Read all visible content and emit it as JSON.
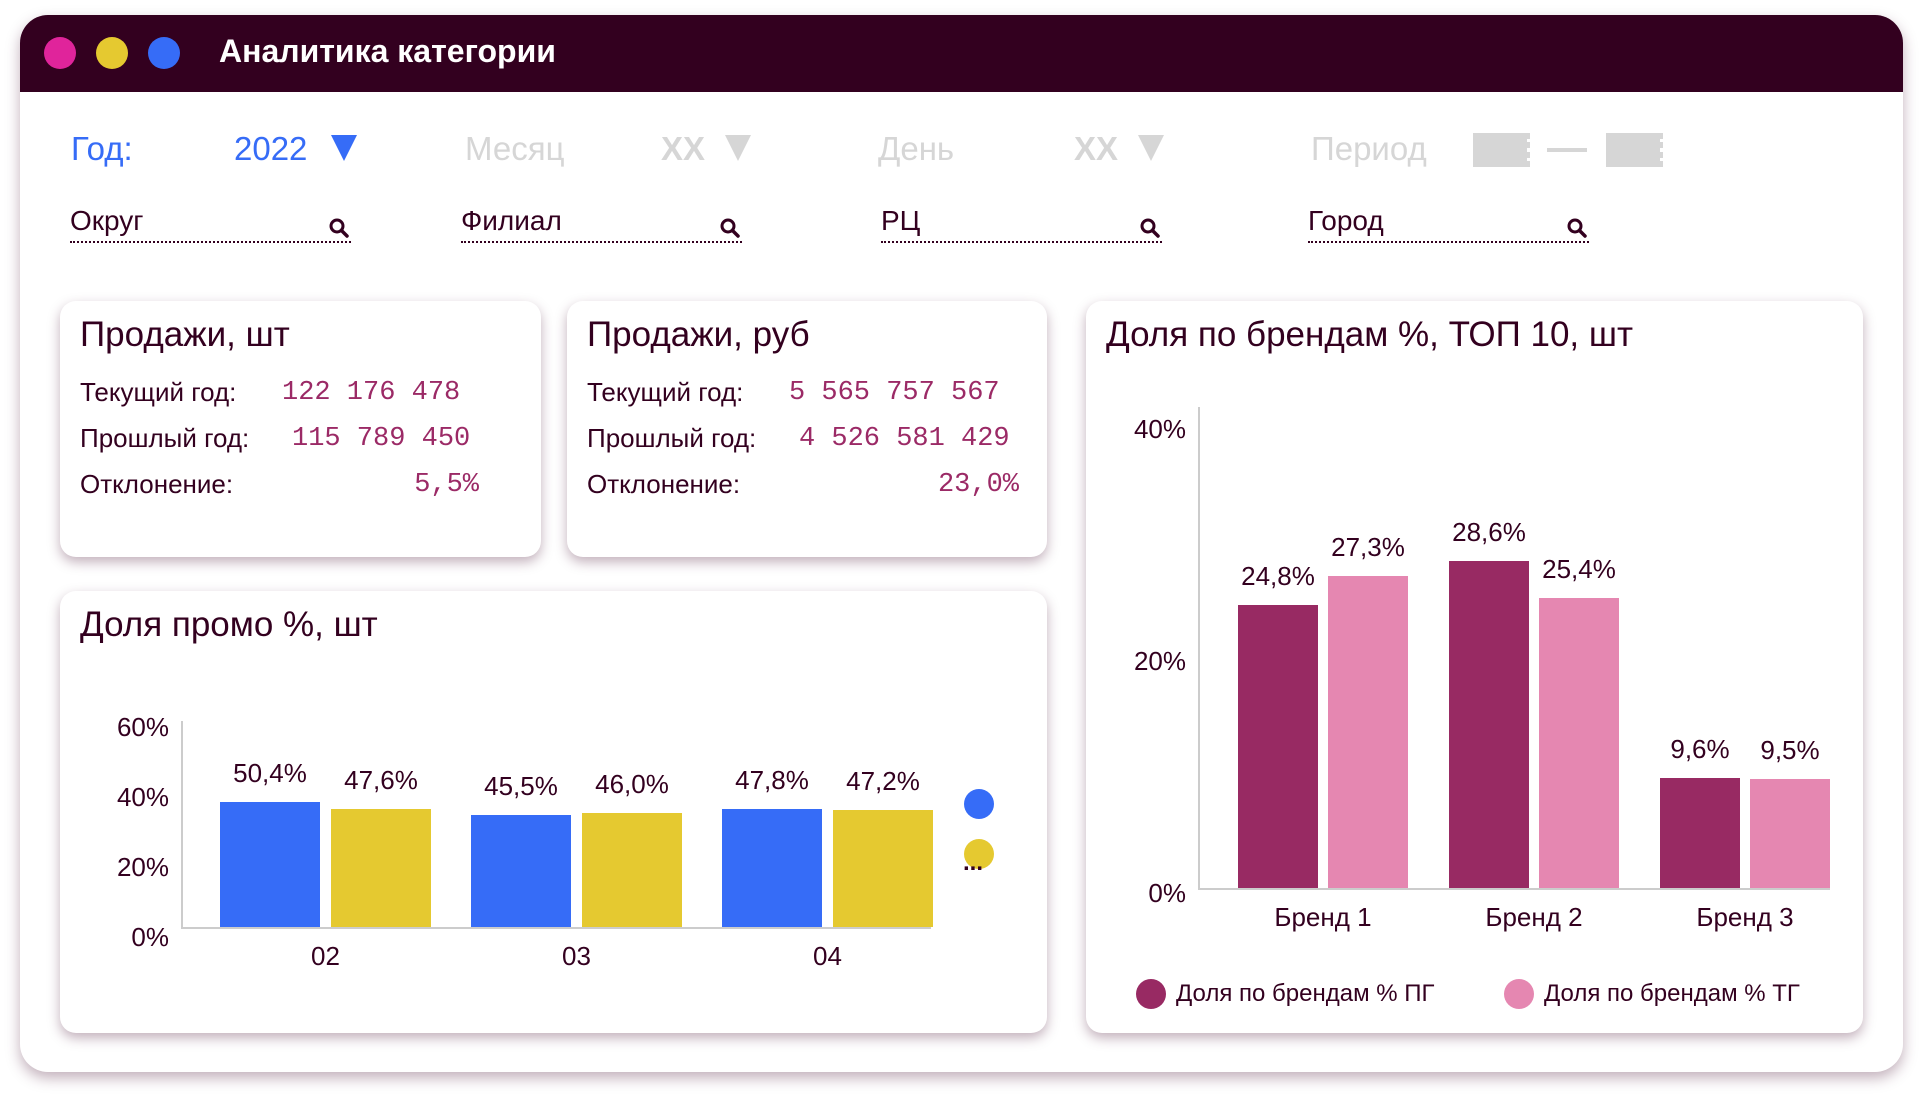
{
  "window": {
    "title": "Аналитика категории",
    "dots": [
      "#e0249b",
      "#e5c930",
      "#366cf7"
    ]
  },
  "filters": {
    "year_label": "Год:",
    "year_value": "2022",
    "month_label": "Месяц",
    "month_value": "XX",
    "day_label": "День",
    "day_value": "XX",
    "period_label": "Период",
    "period_sep": "—",
    "search": [
      {
        "placeholder": "Округ"
      },
      {
        "placeholder": "Филиал"
      },
      {
        "placeholder": "РЦ"
      },
      {
        "placeholder": "Город"
      }
    ]
  },
  "sales_units": {
    "title": "Продажи, шт",
    "current_label": "Текущий год:",
    "current_value": "122 176 478",
    "previous_label": "Прошлый год:",
    "previous_value": "115 789 450",
    "deviation_label": "Отклонение:",
    "deviation_value": "5,5%"
  },
  "sales_rub": {
    "title": "Продажи, руб",
    "current_label": "Текущий год:",
    "current_value": "5 565 757 567",
    "previous_label": "Прошлый год:",
    "previous_value": "4 526 581 429",
    "deviation_label": "Отклонение:",
    "deviation_value": "23,0%"
  },
  "colors": {
    "accent": "#366cf7",
    "dark": "#33001f",
    "blue": "#366cf7",
    "yellow": "#e5c930",
    "maroon": "#982a63",
    "pink": "#e587b1"
  },
  "chart_data": [
    {
      "type": "bar",
      "title": "Доля промо %, шт",
      "categories": [
        "02",
        "03",
        "04"
      ],
      "series": [
        {
          "name": "",
          "color": "#366cf7",
          "values": [
            50.4,
            45.5,
            47.8
          ],
          "labels": [
            "50,4%",
            "45,5%",
            "47,8%"
          ]
        },
        {
          "name": "",
          "color": "#e5c930",
          "values": [
            47.6,
            46.0,
            47.2
          ],
          "labels": [
            "47,6%",
            "46,0%",
            "47,2%"
          ]
        }
      ],
      "yticks": [
        "0%",
        "20%",
        "40%",
        "60%"
      ],
      "ylim": [
        0,
        60
      ],
      "legend_more": "..."
    },
    {
      "type": "bar",
      "title": "Доля по брендам %, ТОП 10, шт",
      "categories": [
        "Бренд 1",
        "Бренд 2",
        "Бренд 3"
      ],
      "series": [
        {
          "name": "Доля по брендам % ПГ",
          "color": "#982a63",
          "values": [
            24.8,
            28.6,
            9.6
          ],
          "labels": [
            "24,8%",
            "28,6%",
            "9,6%"
          ]
        },
        {
          "name": "Доля по брендам % ТГ",
          "color": "#e587b1",
          "values": [
            27.3,
            25.4,
            9.5
          ],
          "labels": [
            "27,3%",
            "25,4%",
            "9,5%"
          ]
        }
      ],
      "yticks": [
        "0%",
        "20%",
        "40%"
      ],
      "ylim": [
        0,
        40
      ],
      "legend": "bottom"
    }
  ]
}
